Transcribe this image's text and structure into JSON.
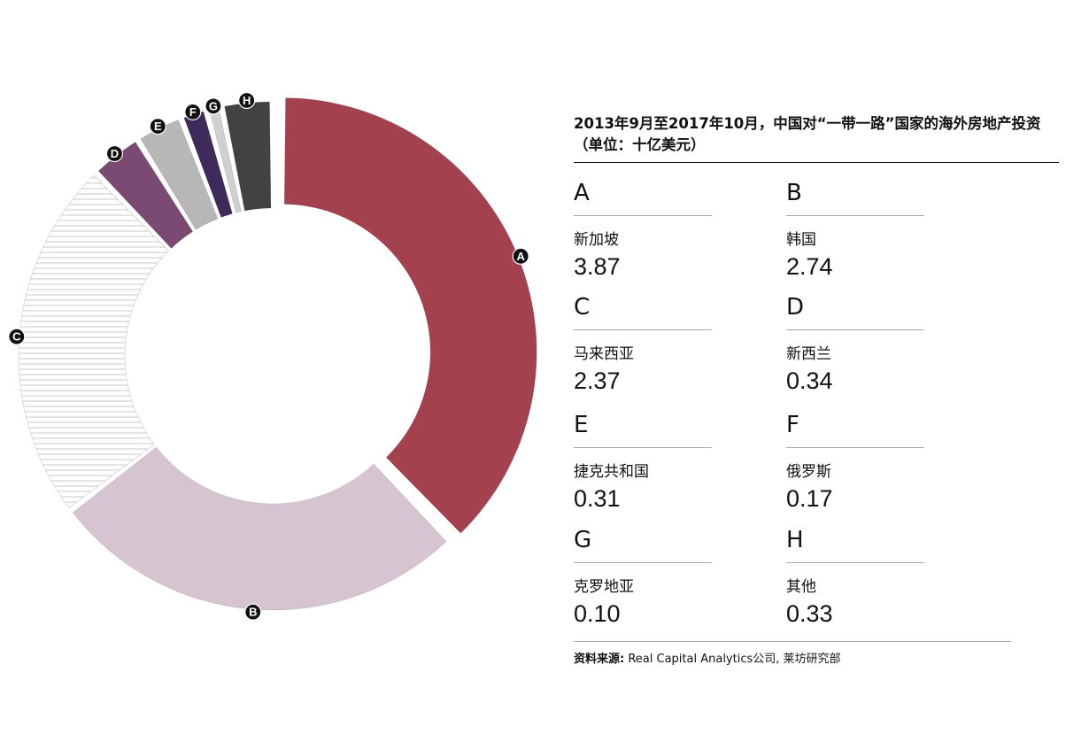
{
  "title": "2013年9月至2017年10月，中国对“一带一路”国家的海外房地产投资",
  "subtitle": "（单位：十亿美元）",
  "entries": [
    {
      "letter": "A",
      "country": "新加坡",
      "value": "3.87"
    },
    {
      "letter": "B",
      "country": "韩国",
      "value": "2.74"
    },
    {
      "letter": "C",
      "country": "马来西亚",
      "value": "2.37"
    },
    {
      "letter": "D",
      "country": "新西兰",
      "value": "0.34"
    },
    {
      "letter": "E",
      "country": "捷克共和国",
      "value": "0.31"
    },
    {
      "letter": "F",
      "country": "俄罗斯",
      "value": "0.17"
    },
    {
      "letter": "G",
      "country": "克罗地亚",
      "value": "0.10"
    },
    {
      "letter": "H",
      "country": "其他",
      "value": "0.33"
    }
  ],
  "source": {
    "label": "资料来源:",
    "text": "Real Capital Analytics公司, 莱坊研究部"
  },
  "chart_data": {
    "type": "pie",
    "categories": [
      "A",
      "B",
      "C",
      "D",
      "E",
      "F",
      "G",
      "H"
    ],
    "labels": [
      "新加坡",
      "韩国",
      "马来西亚",
      "新西兰",
      "捷克共和国",
      "俄罗斯",
      "克罗地亚",
      "其他"
    ],
    "values": [
      3.87,
      2.74,
      2.37,
      0.34,
      0.31,
      0.17,
      0.1,
      0.33
    ],
    "unit": "十亿美元",
    "colors": [
      "#a3414f",
      "#d6c5d1",
      "#ffffff",
      "#7a4a72",
      "#b7b7b7",
      "#3e2b5c",
      "#d0d0d0",
      "#424242"
    ],
    "highlight": "A",
    "legend": "right"
  }
}
